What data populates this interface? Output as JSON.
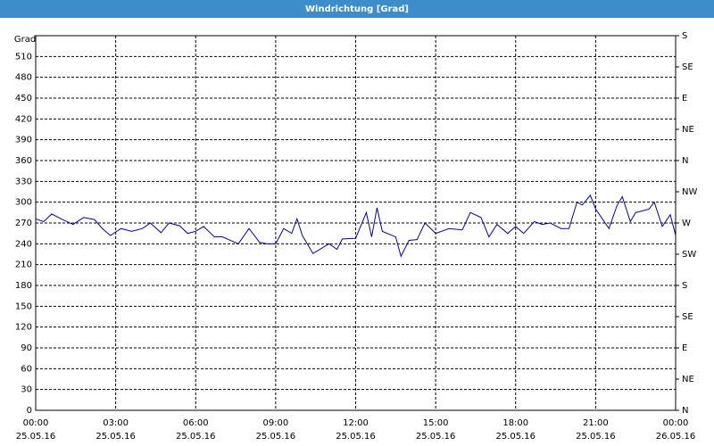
{
  "chart_data": {
    "type": "line",
    "title": "Windrichtung [Grad]",
    "ylabel": "Grad",
    "x": [
      0,
      0.3,
      0.6,
      1,
      1.4,
      1.8,
      2.2,
      2.5,
      2.8,
      3.2,
      3.6,
      4,
      4.3,
      4.7,
      5,
      5.4,
      5.7,
      6,
      6.3,
      6.7,
      7,
      7.3,
      7.6,
      8,
      8.4,
      8.7,
      9,
      9.3,
      9.6,
      9.8,
      10,
      10.4,
      11,
      11.3,
      11.5,
      12,
      12.4,
      12.6,
      12.8,
      13,
      13.5,
      13.7,
      14,
      14.3,
      14.6,
      15,
      15.5,
      16,
      16.3,
      16.7,
      17,
      17.3,
      17.7,
      18,
      18.3,
      18.7,
      19,
      19.3,
      19.7,
      20,
      20.3,
      20.5,
      20.8,
      21,
      21.5,
      21.8,
      22,
      22.3,
      22.5,
      23,
      23.2,
      23.5,
      23.8,
      24
    ],
    "series": [
      {
        "name": "Windrichtung",
        "color": "#0000b4",
        "values": [
          276,
          272,
          283,
          275,
          268,
          278,
          275,
          262,
          252,
          262,
          258,
          262,
          270,
          256,
          270,
          266,
          255,
          258,
          265,
          250,
          250,
          245,
          240,
          262,
          242,
          240,
          240,
          262,
          255,
          276,
          252,
          226,
          240,
          232,
          247,
          248,
          285,
          250,
          292,
          258,
          250,
          222,
          245,
          246,
          270,
          255,
          262,
          260,
          285,
          278,
          250,
          268,
          255,
          265,
          255,
          272,
          268,
          270,
          262,
          262,
          300,
          296,
          310,
          290,
          262,
          295,
          308,
          272,
          285,
          290,
          300,
          265,
          282,
          252
        ]
      }
    ],
    "xlim": [
      0,
      24
    ],
    "xticks": [
      {
        "value": 0,
        "label": "00:00"
      },
      {
        "value": 3,
        "label": "03:00"
      },
      {
        "value": 6,
        "label": "06:00"
      },
      {
        "value": 9,
        "label": "09:00"
      },
      {
        "value": 12,
        "label": "12:00"
      },
      {
        "value": 15,
        "label": "15:00"
      },
      {
        "value": 18,
        "label": "18:00"
      },
      {
        "value": 21,
        "label": "21:00"
      },
      {
        "value": 24,
        "label": "00:00"
      }
    ],
    "xtick_dates": [
      "25.05.16",
      "25.05.16",
      "25.05.16",
      "25.05.16",
      "25.05.16",
      "25.05.16",
      "25.05.16",
      "25.05.16",
      "26.05.16"
    ],
    "ylim": [
      0,
      540
    ],
    "yticks": [
      0,
      30,
      60,
      90,
      120,
      150,
      180,
      210,
      240,
      270,
      300,
      330,
      360,
      390,
      420,
      450,
      480,
      510
    ],
    "y2lim": [
      0,
      540
    ],
    "y2ticks": [
      {
        "value": 0,
        "label": "N"
      },
      {
        "value": 45,
        "label": "NE"
      },
      {
        "value": 90,
        "label": "E"
      },
      {
        "value": 135,
        "label": "SE"
      },
      {
        "value": 180,
        "label": "S"
      },
      {
        "value": 225,
        "label": "SW"
      },
      {
        "value": 270,
        "label": "W"
      },
      {
        "value": 315,
        "label": "NW"
      },
      {
        "value": 360,
        "label": "N"
      },
      {
        "value": 405,
        "label": "NE"
      },
      {
        "value": 450,
        "label": "E"
      },
      {
        "value": 495,
        "label": "SE"
      },
      {
        "value": 540,
        "label": "S"
      }
    ],
    "grid": true
  }
}
